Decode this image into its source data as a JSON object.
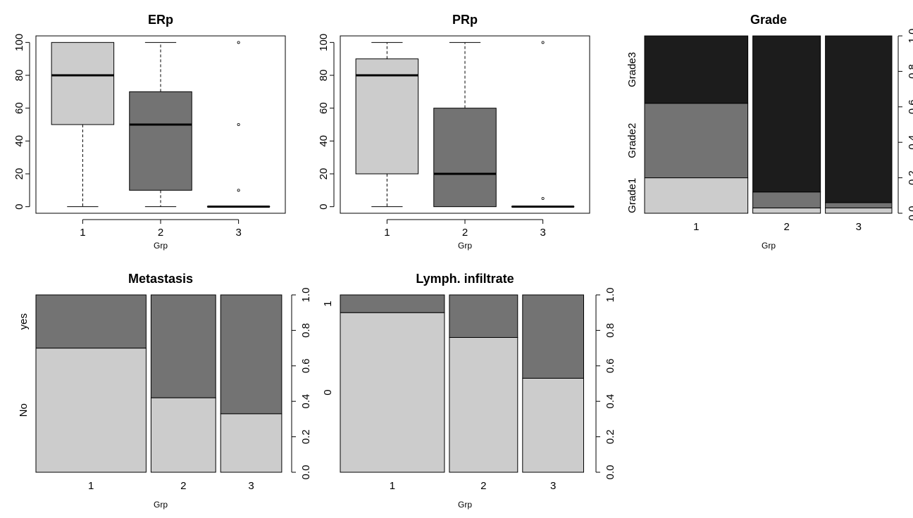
{
  "colors": {
    "light": "#cccccc",
    "mid": "#737373",
    "dark": "#1c1c1c",
    "stroke": "#000000"
  },
  "chart_data": [
    {
      "id": "erp",
      "type": "boxplot",
      "title": "ERp",
      "xlabel": "Grp",
      "ylim": [
        0,
        100
      ],
      "yticks": [
        "0",
        "20",
        "40",
        "60",
        "80",
        "100"
      ],
      "categories": [
        "1",
        "2",
        "3"
      ],
      "boxes": [
        {
          "group": "1",
          "min": 0,
          "q1": 50,
          "median": 80,
          "q3": 100,
          "max": 100,
          "outliers": [],
          "fill": "light"
        },
        {
          "group": "2",
          "min": 0,
          "q1": 10,
          "median": 50,
          "q3": 70,
          "max": 100,
          "outliers": [],
          "fill": "mid"
        },
        {
          "group": "3",
          "min": 0,
          "q1": 0,
          "median": 0,
          "q3": 0,
          "max": 0,
          "outliers": [
            10,
            50,
            100
          ],
          "fill": "dark"
        }
      ]
    },
    {
      "id": "prp",
      "type": "boxplot",
      "title": "PRp",
      "xlabel": "Grp",
      "ylim": [
        0,
        100
      ],
      "yticks": [
        "0",
        "20",
        "40",
        "60",
        "80",
        "100"
      ],
      "categories": [
        "1",
        "2",
        "3"
      ],
      "boxes": [
        {
          "group": "1",
          "min": 0,
          "q1": 20,
          "median": 80,
          "q3": 90,
          "max": 100,
          "outliers": [],
          "fill": "light"
        },
        {
          "group": "2",
          "min": 0,
          "q1": 0,
          "median": 20,
          "q3": 60,
          "max": 100,
          "outliers": [],
          "fill": "mid"
        },
        {
          "group": "3",
          "min": 0,
          "q1": 0,
          "median": 0,
          "q3": 0,
          "max": 0,
          "outliers": [
            5,
            100
          ],
          "fill": "dark"
        }
      ]
    },
    {
      "id": "grade",
      "type": "mosaic",
      "title": "Grade",
      "xlabel": "Grp",
      "categories": [
        "1",
        "2",
        "3"
      ],
      "widths": [
        0.435,
        0.285,
        0.28
      ],
      "levels": [
        "Grade1",
        "Grade2",
        "Grade3"
      ],
      "level_fills": [
        "light",
        "mid",
        "dark"
      ],
      "proportions": [
        [
          0.2,
          0.42,
          0.38
        ],
        [
          0.03,
          0.09,
          0.88
        ],
        [
          0.03,
          0.03,
          0.94
        ]
      ],
      "left_labels": [
        "Grade1",
        "Grade2",
        "Grade3"
      ],
      "rticks": [
        "0.0",
        "0.2",
        "0.4",
        "0.6",
        "0.8",
        "1.0"
      ]
    },
    {
      "id": "metastasis",
      "type": "mosaic",
      "title": "Metastasis",
      "xlabel": "Grp",
      "categories": [
        "1",
        "2",
        "3"
      ],
      "widths": [
        0.46,
        0.27,
        0.255
      ],
      "levels": [
        "No",
        "yes"
      ],
      "level_fills": [
        "light",
        "mid"
      ],
      "proportions": [
        [
          0.7,
          0.3
        ],
        [
          0.42,
          0.58
        ],
        [
          0.33,
          0.67
        ]
      ],
      "left_labels": [
        "No",
        "yes"
      ],
      "rticks": [
        "0.0",
        "0.2",
        "0.4",
        "0.6",
        "0.8",
        "1.0"
      ]
    },
    {
      "id": "lymph",
      "type": "mosaic",
      "title": "Lymph. infiltrate",
      "xlabel": "Grp",
      "categories": [
        "1",
        "2",
        "3"
      ],
      "widths": [
        0.435,
        0.285,
        0.255
      ],
      "levels": [
        "0",
        "1"
      ],
      "level_fills": [
        "light",
        "mid"
      ],
      "proportions": [
        [
          0.9,
          0.1
        ],
        [
          0.76,
          0.24
        ],
        [
          0.53,
          0.47
        ]
      ],
      "left_labels": [
        "0",
        "1"
      ],
      "rticks": [
        "0.0",
        "0.2",
        "0.4",
        "0.6",
        "0.8",
        "1.0"
      ]
    }
  ]
}
